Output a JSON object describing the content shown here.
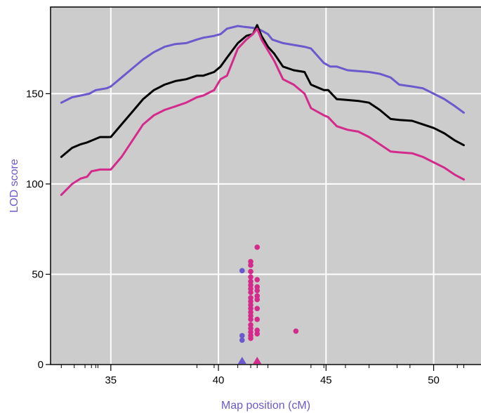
{
  "chart_data": {
    "type": "line",
    "title": "",
    "xlabel": "Map position (cM)",
    "ylabel": "LOD score",
    "label_color": "#6A5ACD",
    "background": "#CCCCCC",
    "grid": true,
    "xlim": [
      32.2,
      52.2
    ],
    "ylim": [
      0,
      198
    ],
    "x_ticks": [
      35,
      40,
      45,
      50
    ],
    "y_ticks": [
      0,
      50,
      100,
      150
    ],
    "x_minor_ticks": [
      32.7,
      33.3,
      33.8,
      34.1,
      34.3,
      34.4,
      39.0,
      39.8,
      40.9,
      41.5,
      41.8,
      42.3,
      44.3,
      44.9,
      45.9,
      47.0,
      48.3,
      48.9,
      51.1,
      51.4
    ],
    "series": [
      {
        "color": "#6A5ACD",
        "x": [
          32.7,
          33.2,
          33.6,
          34.0,
          34.3,
          34.8,
          35.0,
          35.5,
          36.0,
          36.5,
          37.0,
          37.5,
          38.0,
          38.5,
          39.0,
          39.3,
          39.8,
          40.1,
          40.4,
          40.9,
          41.2,
          41.6,
          41.8,
          42.0,
          42.3,
          42.5,
          43.0,
          43.5,
          44.0,
          44.3,
          44.9,
          45.2,
          45.5,
          46.0,
          46.5,
          47.0,
          47.5,
          48.0,
          48.4,
          49.0,
          49.5,
          50.0,
          50.5,
          51.0,
          51.4
        ],
        "y": [
          145,
          148,
          149,
          150,
          152,
          153,
          154,
          159,
          164,
          169,
          173,
          176,
          177.5,
          178,
          180,
          181,
          182,
          183,
          186,
          187.5,
          187,
          186.5,
          186,
          185,
          183,
          180,
          178,
          177,
          176,
          175,
          167,
          165,
          165,
          163,
          162.5,
          162,
          161,
          159,
          155,
          154,
          153,
          150,
          147,
          143,
          139.5
        ]
      },
      {
        "color": "#000000",
        "x": [
          32.7,
          33.2,
          33.6,
          33.9,
          34.1,
          34.5,
          35.0,
          35.5,
          36.0,
          36.5,
          37.0,
          37.5,
          38.0,
          38.5,
          39.0,
          39.3,
          39.8,
          40.1,
          40.4,
          40.9,
          41.3,
          41.6,
          41.8,
          42.0,
          42.3,
          42.6,
          43.0,
          43.5,
          44.0,
          44.3,
          44.9,
          45.1,
          45.5,
          46.0,
          46.5,
          47.0,
          47.5,
          48.0,
          48.4,
          49.0,
          49.5,
          50.0,
          50.5,
          51.0,
          51.4
        ],
        "y": [
          115,
          120,
          122,
          123,
          124,
          126,
          126,
          133,
          140,
          147,
          152,
          155,
          157,
          158,
          160,
          160,
          162,
          165,
          170,
          178,
          182,
          183,
          188,
          182,
          176,
          172,
          165,
          163,
          162,
          155,
          152,
          152,
          147,
          146.5,
          146,
          145,
          141,
          136,
          135.5,
          135,
          133,
          131,
          128,
          124,
          121.5
        ]
      },
      {
        "color": "#D42A8C",
        "x": [
          32.7,
          33.2,
          33.6,
          33.9,
          34.1,
          34.5,
          35.0,
          35.5,
          36.0,
          36.5,
          37.0,
          37.5,
          38.0,
          38.5,
          39.0,
          39.3,
          39.8,
          40.1,
          40.4,
          40.9,
          41.3,
          41.6,
          41.8,
          42.0,
          42.3,
          42.6,
          43.0,
          43.5,
          44.0,
          44.3,
          44.9,
          45.1,
          45.5,
          46.0,
          46.5,
          47.0,
          47.5,
          48.0,
          48.4,
          49.0,
          49.5,
          50.0,
          50.5,
          51.0,
          51.4
        ],
        "y": [
          94,
          100,
          103,
          104,
          107,
          108,
          108,
          115,
          124,
          133,
          138,
          141,
          143,
          145,
          148,
          149,
          152,
          158,
          160,
          175,
          180,
          183,
          186,
          180,
          174,
          168,
          158,
          155,
          150,
          142,
          138,
          137,
          132,
          130,
          129,
          126,
          122,
          118,
          117.5,
          117,
          115,
          112,
          109,
          105,
          102.5
        ]
      }
    ],
    "points": [
      {
        "x": 41.1,
        "y": 52,
        "color": "#6A5ACD"
      },
      {
        "x": 41.1,
        "y": 16,
        "color": "#6A5ACD"
      },
      {
        "x": 41.1,
        "y": 13.5,
        "color": "#6A5ACD"
      },
      {
        "x": 41.5,
        "y": 57,
        "color": "#D42A8C"
      },
      {
        "x": 41.5,
        "y": 55,
        "color": "#D42A8C"
      },
      {
        "x": 41.5,
        "y": 51.5,
        "color": "#D42A8C"
      },
      {
        "x": 41.5,
        "y": 48.5,
        "color": "#D42A8C"
      },
      {
        "x": 41.5,
        "y": 46,
        "color": "#D42A8C"
      },
      {
        "x": 41.5,
        "y": 44,
        "color": "#D42A8C"
      },
      {
        "x": 41.5,
        "y": 42,
        "color": "#D42A8C"
      },
      {
        "x": 41.5,
        "y": 40,
        "color": "#D42A8C"
      },
      {
        "x": 41.5,
        "y": 37,
        "color": "#D42A8C"
      },
      {
        "x": 41.5,
        "y": 35,
        "color": "#D42A8C"
      },
      {
        "x": 41.5,
        "y": 33,
        "color": "#D42A8C"
      },
      {
        "x": 41.5,
        "y": 31,
        "color": "#D42A8C"
      },
      {
        "x": 41.5,
        "y": 29,
        "color": "#D42A8C"
      },
      {
        "x": 41.5,
        "y": 27,
        "color": "#D42A8C"
      },
      {
        "x": 41.5,
        "y": 25,
        "color": "#D42A8C"
      },
      {
        "x": 41.5,
        "y": 22,
        "color": "#D42A8C"
      },
      {
        "x": 41.5,
        "y": 20,
        "color": "#D42A8C"
      },
      {
        "x": 41.5,
        "y": 18,
        "color": "#D42A8C"
      },
      {
        "x": 41.5,
        "y": 16,
        "color": "#D42A8C"
      },
      {
        "x": 41.5,
        "y": 14.5,
        "color": "#D42A8C"
      },
      {
        "x": 41.8,
        "y": 65,
        "color": "#D42A8C"
      },
      {
        "x": 41.8,
        "y": 47,
        "color": "#D42A8C"
      },
      {
        "x": 41.8,
        "y": 43,
        "color": "#D42A8C"
      },
      {
        "x": 41.8,
        "y": 41,
        "color": "#D42A8C"
      },
      {
        "x": 41.8,
        "y": 38,
        "color": "#D42A8C"
      },
      {
        "x": 41.8,
        "y": 36,
        "color": "#D42A8C"
      },
      {
        "x": 41.8,
        "y": 31,
        "color": "#D42A8C"
      },
      {
        "x": 41.8,
        "y": 25,
        "color": "#D42A8C"
      },
      {
        "x": 41.8,
        "y": 19,
        "color": "#D42A8C"
      },
      {
        "x": 41.8,
        "y": 17,
        "color": "#D42A8C"
      },
      {
        "x": 43.6,
        "y": 18.5,
        "color": "#D42A8C"
      }
    ],
    "markers": [
      {
        "x": 41.1,
        "shape": "triangle",
        "color": "#6A5ACD"
      },
      {
        "x": 41.8,
        "shape": "triangle",
        "color": "#D42A8C"
      }
    ]
  }
}
